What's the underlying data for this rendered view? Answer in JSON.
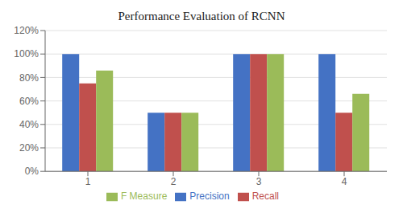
{
  "chart_data": {
    "type": "bar",
    "title": "Performance Evaluation of RCNN",
    "categories": [
      "1",
      "2",
      "3",
      "4"
    ],
    "series": [
      {
        "name": "Precision",
        "color": "#4472C4",
        "values": [
          100,
          50,
          100,
          100
        ]
      },
      {
        "name": "Recall",
        "color": "#C0504D",
        "values": [
          75,
          50,
          100,
          50
        ]
      },
      {
        "name": "F Measure",
        "color": "#9BBB59",
        "values": [
          86,
          50,
          100,
          66
        ]
      }
    ],
    "ylim": [
      0,
      120
    ],
    "yticks": [
      {
        "value": 0,
        "label": "0%"
      },
      {
        "value": 20,
        "label": "20%"
      },
      {
        "value": 40,
        "label": "40%"
      },
      {
        "value": 60,
        "label": "60%"
      },
      {
        "value": 80,
        "label": "80%"
      },
      {
        "value": 100,
        "label": "100%"
      },
      {
        "value": 120,
        "label": "120%"
      }
    ],
    "grid": true,
    "legend": "bottom"
  }
}
